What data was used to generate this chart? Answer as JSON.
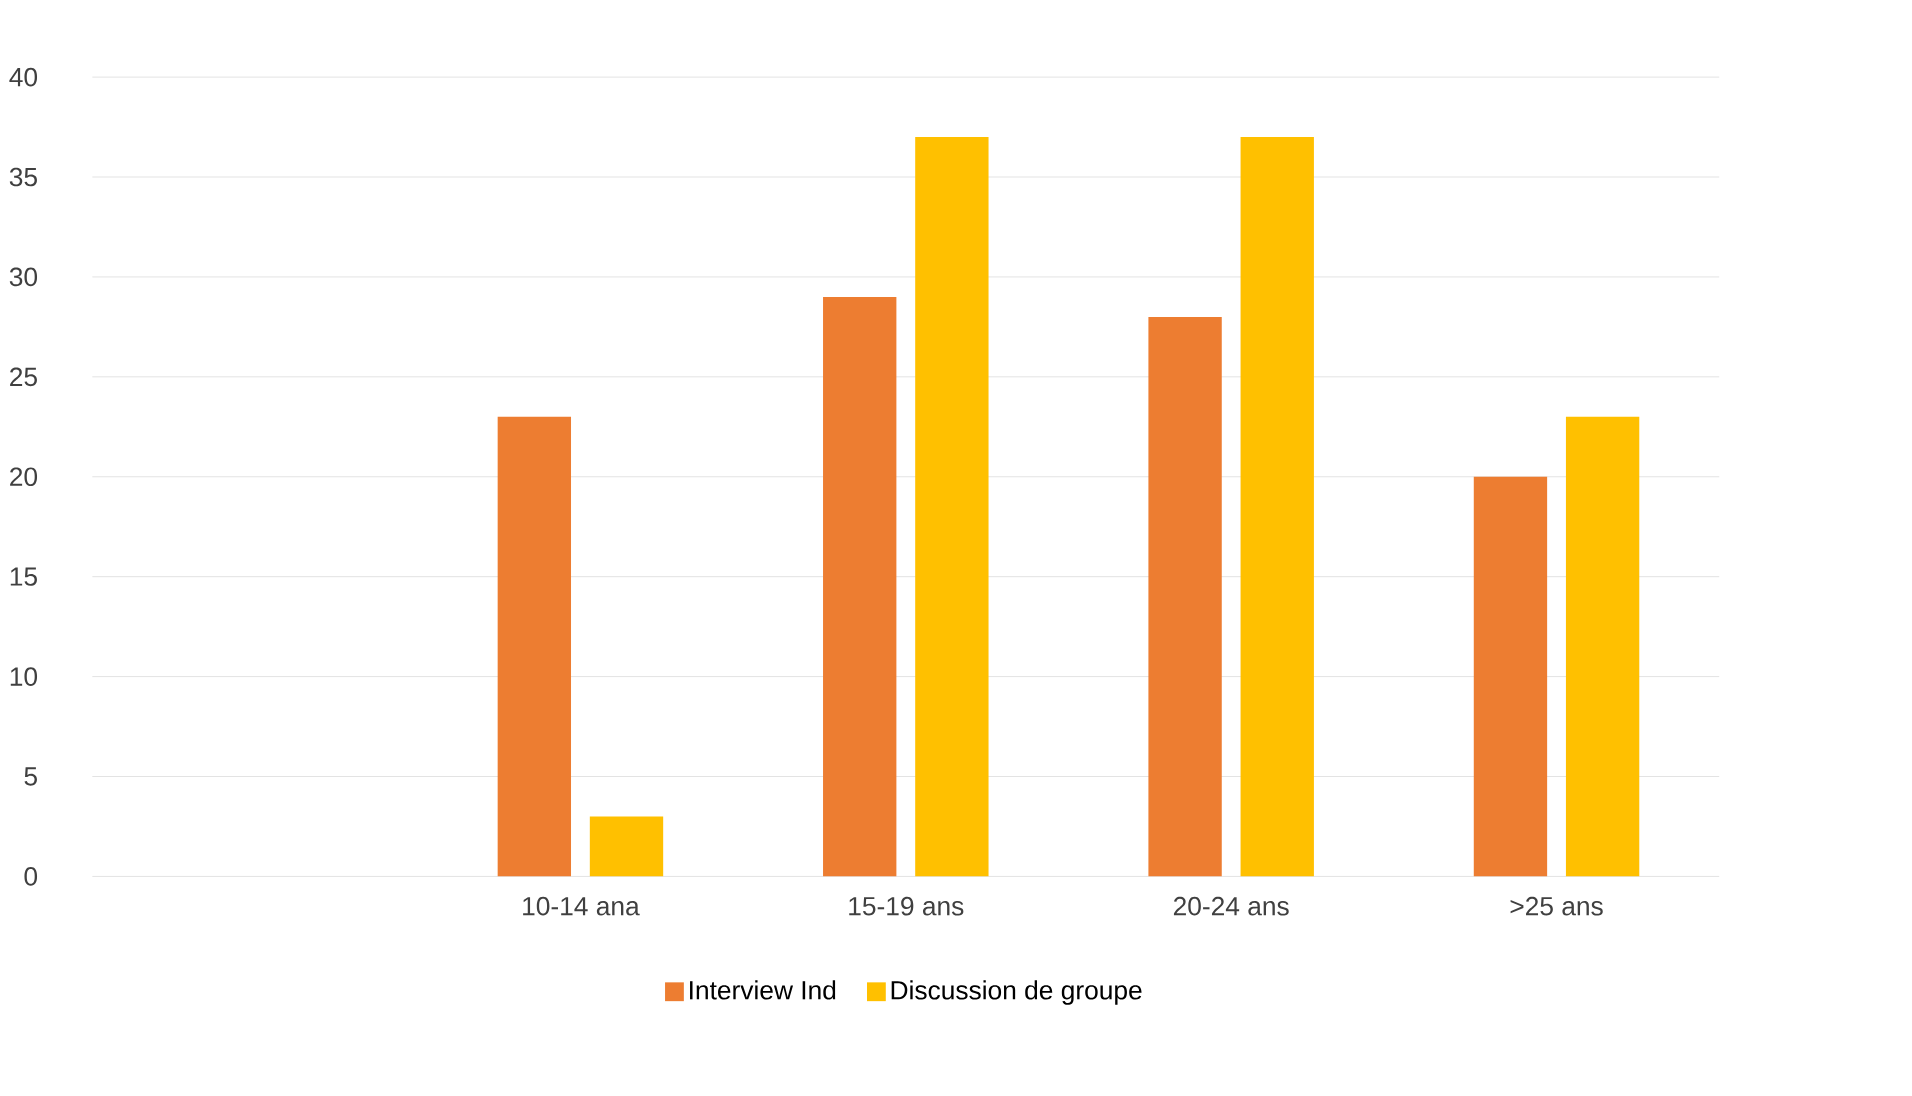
{
  "chart_data": {
    "type": "bar",
    "categories": [
      null,
      "10-14 ana",
      "15-19 ans",
      "20-24 ans",
      ">25 ans"
    ],
    "series": [
      {
        "name": "Interview Ind",
        "color": "#ed7d31",
        "values": [
          null,
          23,
          29,
          28,
          20
        ]
      },
      {
        "name": "Discussion de groupe",
        "color": "#ffc000",
        "values": [
          null,
          3,
          37,
          37,
          23
        ]
      }
    ],
    "ylim": [
      0,
      40
    ],
    "yticks": [
      0,
      5,
      10,
      15,
      20,
      25,
      30,
      35,
      40
    ],
    "grid": "y",
    "legend": "bottom"
  }
}
